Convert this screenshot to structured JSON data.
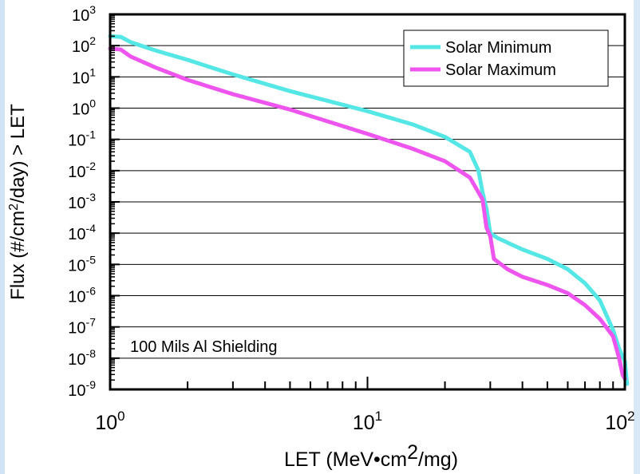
{
  "chart_data": {
    "type": "line",
    "xscale": "log",
    "yscale": "log",
    "xlim": [
      1,
      100
    ],
    "ylim": [
      1e-09,
      1000
    ],
    "xlabel": "LET (MeV•cm²/mg)",
    "ylabel": "Flux (#/cm²/day) > LET",
    "annotation": "100 Mils Al Shielding",
    "legend_position": "top-right",
    "grid": "horizontal lines at each y decade",
    "x_ticks": [
      {
        "base": "10",
        "exp": "0",
        "value": 1
      },
      {
        "base": "10",
        "exp": "1",
        "value": 10
      },
      {
        "base": "10",
        "exp": "2",
        "value": 100
      }
    ],
    "y_ticks": [
      {
        "base": "10",
        "exp": "3",
        "value": 1000
      },
      {
        "base": "10",
        "exp": "2",
        "value": 100
      },
      {
        "base": "10",
        "exp": "1",
        "value": 10
      },
      {
        "base": "10",
        "exp": "0",
        "value": 1
      },
      {
        "base": "10",
        "exp": "-1",
        "value": 0.1
      },
      {
        "base": "10",
        "exp": "-2",
        "value": 0.01
      },
      {
        "base": "10",
        "exp": "-3",
        "value": 0.001
      },
      {
        "base": "10",
        "exp": "-4",
        "value": 0.0001
      },
      {
        "base": "10",
        "exp": "-5",
        "value": 1e-05
      },
      {
        "base": "10",
        "exp": "-6",
        "value": 1e-06
      },
      {
        "base": "10",
        "exp": "-7",
        "value": 1e-07
      },
      {
        "base": "10",
        "exp": "-8",
        "value": 1e-08
      },
      {
        "base": "10",
        "exp": "-9",
        "value": 1e-09
      }
    ],
    "series": [
      {
        "name": "Solar Minimum",
        "color": "#55e6e6",
        "points": [
          [
            1.0,
            200
          ],
          [
            1.1,
            190
          ],
          [
            1.2,
            130
          ],
          [
            1.5,
            70
          ],
          [
            2,
            35
          ],
          [
            3,
            12
          ],
          [
            5,
            3.5
          ],
          [
            10,
            0.8
          ],
          [
            15,
            0.3
          ],
          [
            20,
            0.12
          ],
          [
            25,
            0.04
          ],
          [
            27,
            0.01
          ],
          [
            28,
            0.002
          ],
          [
            29,
            0.0006
          ],
          [
            30,
            0.0001
          ],
          [
            32,
            7e-05
          ],
          [
            40,
            3e-05
          ],
          [
            50,
            1.5e-05
          ],
          [
            60,
            7e-06
          ],
          [
            70,
            2.5e-06
          ],
          [
            80,
            7e-07
          ],
          [
            90,
            8e-08
          ],
          [
            95,
            2e-08
          ],
          [
            100,
            8e-09
          ],
          [
            102,
            1.5e-09
          ]
        ]
      },
      {
        "name": "Solar Maximum",
        "color": "#ee55ee",
        "points": [
          [
            1.0,
            80
          ],
          [
            1.1,
            75
          ],
          [
            1.2,
            45
          ],
          [
            1.5,
            20
          ],
          [
            2,
            8
          ],
          [
            3,
            2.8
          ],
          [
            5,
            0.9
          ],
          [
            10,
            0.15
          ],
          [
            15,
            0.05
          ],
          [
            20,
            0.02
          ],
          [
            25,
            0.006
          ],
          [
            28,
            0.0012
          ],
          [
            29,
            0.00015
          ],
          [
            30,
            8e-05
          ],
          [
            31,
            1.5e-05
          ],
          [
            35,
            7e-06
          ],
          [
            40,
            4e-06
          ],
          [
            50,
            2.2e-06
          ],
          [
            60,
            1.2e-06
          ],
          [
            70,
            5e-07
          ],
          [
            80,
            1.8e-07
          ],
          [
            90,
            5e-08
          ],
          [
            95,
            1e-08
          ],
          [
            98,
            3e-09
          ],
          [
            100,
            2.2e-09
          ]
        ]
      }
    ]
  }
}
